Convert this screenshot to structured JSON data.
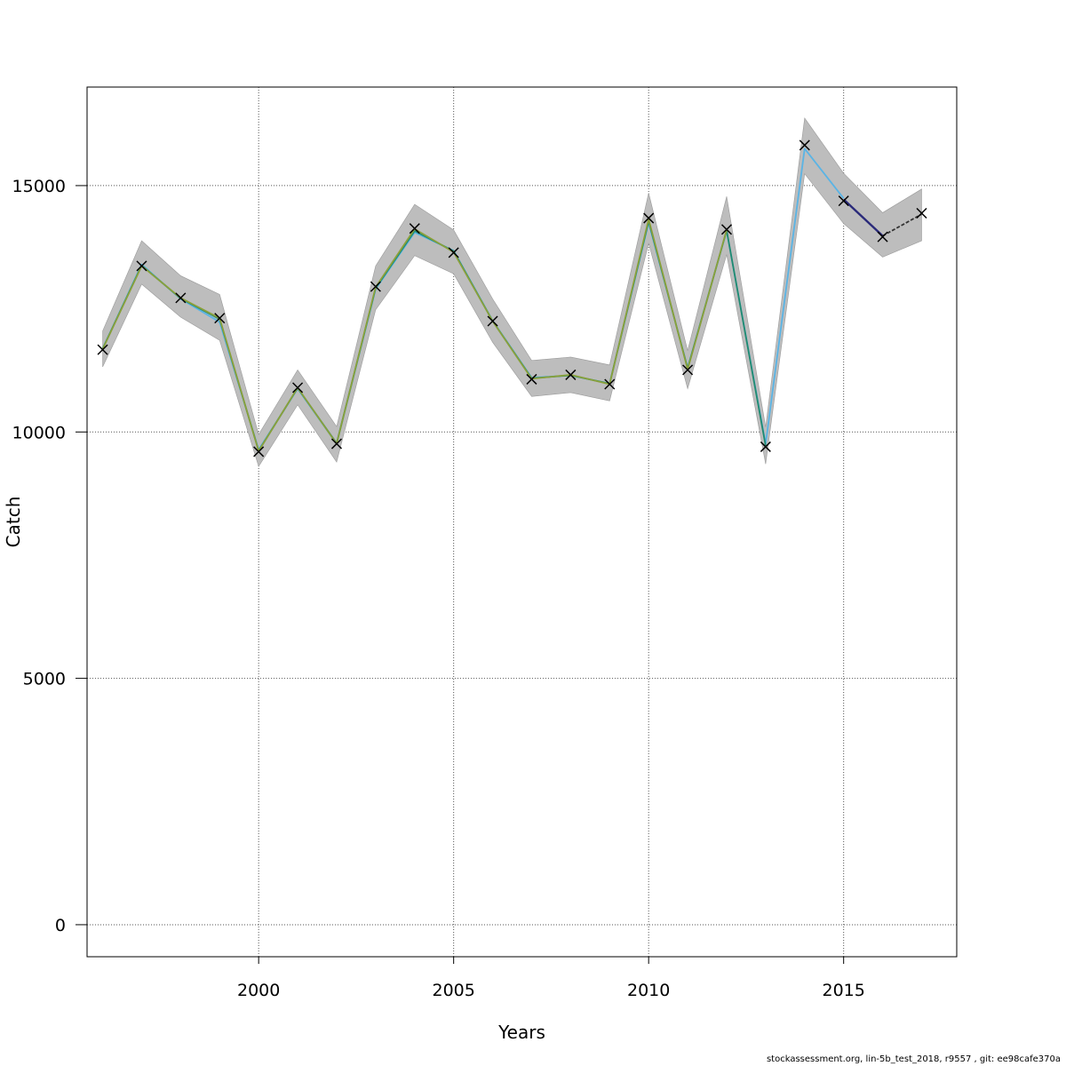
{
  "chart_data": {
    "type": "line",
    "title": "",
    "xlabel": "Years",
    "ylabel": "Catch",
    "xlim": [
      1995.6,
      2017.9
    ],
    "ylim": [
      -650,
      17000
    ],
    "grid": true,
    "x_ticks": [
      2000,
      2005,
      2010,
      2015
    ],
    "y_ticks": [
      0,
      5000,
      10000,
      15000
    ],
    "x": [
      1996,
      1997,
      1998,
      1999,
      2000,
      2001,
      2002,
      2003,
      2004,
      2005,
      2006,
      2007,
      2008,
      2009,
      2010,
      2011,
      2012,
      2013,
      2014,
      2015,
      2016,
      2017
    ],
    "observed": [
      11670,
      13370,
      12720,
      12310,
      9600,
      10900,
      9760,
      12950,
      14130,
      13640,
      12250,
      11070,
      11160,
      10970,
      14340,
      11260,
      14110,
      9700,
      15820,
      14690,
      13960,
      14440
    ],
    "band_upper": [
      12050,
      13880,
      13170,
      12790,
      9950,
      11260,
      10110,
      13370,
      14620,
      14100,
      12700,
      11450,
      11520,
      11360,
      14850,
      11650,
      14780,
      10100,
      16370,
      15250,
      14450,
      14930
    ],
    "band_lower": [
      11320,
      13000,
      12330,
      11860,
      9300,
      10550,
      9390,
      12480,
      13580,
      13210,
      11820,
      10720,
      10800,
      10630,
      13830,
      10880,
      13600,
      9350,
      15240,
      14230,
      13550,
      13880
    ],
    "series": [
      {
        "color": "#5ab4e5",
        "x": [
          1996,
          1997,
          1998,
          1999,
          2000,
          2001,
          2002,
          2003,
          2004,
          2005,
          2006,
          2007,
          2008,
          2009,
          2010,
          2011,
          2012,
          2013,
          2014,
          2015
        ],
        "values": [
          11690,
          13400,
          12700,
          12230,
          9640,
          10880,
          9760,
          12900,
          14050,
          13680,
          12260,
          11100,
          11150,
          10980,
          14250,
          11300,
          14080,
          9760,
          15750,
          14740
        ]
      },
      {
        "color": "#1f8a70",
        "x": [
          1996,
          1997,
          1998,
          1999,
          2000,
          2001,
          2002,
          2003,
          2004,
          2005,
          2006,
          2007,
          2008,
          2009,
          2010,
          2011,
          2012,
          2013
        ],
        "values": [
          11690,
          13380,
          12710,
          12290,
          9620,
          10890,
          9770,
          12920,
          14080,
          13670,
          12250,
          11090,
          11150,
          10980,
          14280,
          11290,
          14090,
          9720
        ]
      },
      {
        "color": "#2a2a7a",
        "x": [
          2015,
          2016
        ],
        "values": [
          14720,
          13980
        ]
      },
      {
        "color": "#333333",
        "x": [
          2016,
          2017
        ],
        "values": [
          13980,
          14420
        ]
      },
      {
        "color": "#8aa03a",
        "x": [
          1996,
          1997,
          1998,
          1999,
          2000,
          2001,
          2002,
          2003,
          2004,
          2005,
          2006,
          2007,
          2008,
          2009,
          2010,
          2011,
          2012
        ],
        "values": [
          11680,
          13370,
          12720,
          12310,
          9610,
          10900,
          9760,
          12940,
          14120,
          13650,
          12250,
          11080,
          11160,
          10970,
          14320,
          11270,
          14100
        ]
      }
    ]
  },
  "footer": "stockassessment.org, lin-5b_test_2018, r9557 , git: ee98cafe370a"
}
